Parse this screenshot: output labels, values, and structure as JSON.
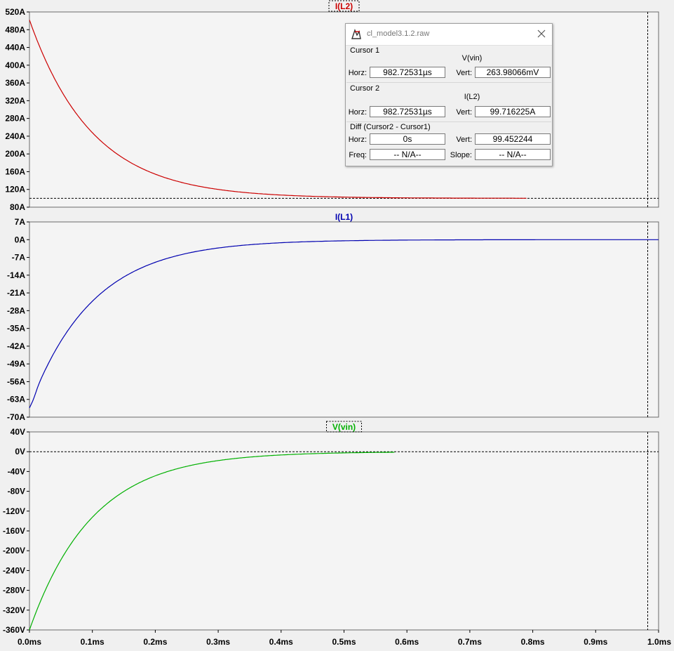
{
  "panes": [
    {
      "name": "I(L2)",
      "color": "#cc0000",
      "title_boxed": true,
      "y_ticks": [
        "520A",
        "480A",
        "440A",
        "400A",
        "360A",
        "320A",
        "280A",
        "240A",
        "200A",
        "160A",
        "120A",
        "80A"
      ],
      "ylim": [
        80,
        520
      ],
      "ref_line": 100,
      "trace": {
        "type": "exp",
        "start": 502,
        "end": 100,
        "tau": 0.1,
        "t_end": 0.79
      }
    },
    {
      "name": "I(L1)",
      "color": "#0000b0",
      "title_boxed": false,
      "y_ticks": [
        "7A",
        "0A",
        "-7A",
        "-14A",
        "-21A",
        "-28A",
        "-35A",
        "-42A",
        "-49A",
        "-56A",
        "-63A",
        "-70A"
      ],
      "ylim": [
        -70,
        7
      ],
      "ref_line": null,
      "trace": {
        "type": "exp_rise",
        "start": -66,
        "end": 0,
        "tau": 0.1,
        "t_end": 1.0,
        "peak_t": 0.006,
        "peak_v": -67
      }
    },
    {
      "name": "V(vin)",
      "color": "#00b000",
      "title_boxed": true,
      "y_ticks": [
        "40V",
        "0V",
        "-40V",
        "-80V",
        "-120V",
        "-160V",
        "-200V",
        "-240V",
        "-280V",
        "-320V",
        "-360V"
      ],
      "ylim": [
        -360,
        40
      ],
      "ref_line": 0,
      "trace": {
        "type": "exp",
        "start": -360,
        "end": 0,
        "tau": 0.1,
        "t_end": 0.58
      }
    }
  ],
  "x_ticks": [
    "0.0ms",
    "0.1ms",
    "0.2ms",
    "0.3ms",
    "0.4ms",
    "0.5ms",
    "0.6ms",
    "0.7ms",
    "0.8ms",
    "0.9ms",
    "1.0ms"
  ],
  "xlim_ms": [
    0,
    1.0
  ],
  "cursor_ms": 0.98272531,
  "dialog": {
    "title": "cl_model3.1.2.raw",
    "icon": "ltspice-icon",
    "cursor1": {
      "label": "Cursor 1",
      "signal": "V(vin)",
      "horz_label": "Horz:",
      "horz": "982.72531µs",
      "vert_label": "Vert:",
      "vert": "263.98066mV"
    },
    "cursor2": {
      "label": "Cursor 2",
      "signal": "I(L2)",
      "horz_label": "Horz:",
      "horz": "982.72531µs",
      "vert_label": "Vert:",
      "vert": "99.716225A"
    },
    "diff": {
      "label": "Diff (Cursor2 - Cursor1)",
      "horz_label": "Horz:",
      "horz": "0s",
      "vert_label": "Vert:",
      "vert": "99.452244",
      "freq_label": "Freq:",
      "freq": "-- N/A--",
      "slope_label": "Slope:",
      "slope": "-- N/A--"
    }
  }
}
